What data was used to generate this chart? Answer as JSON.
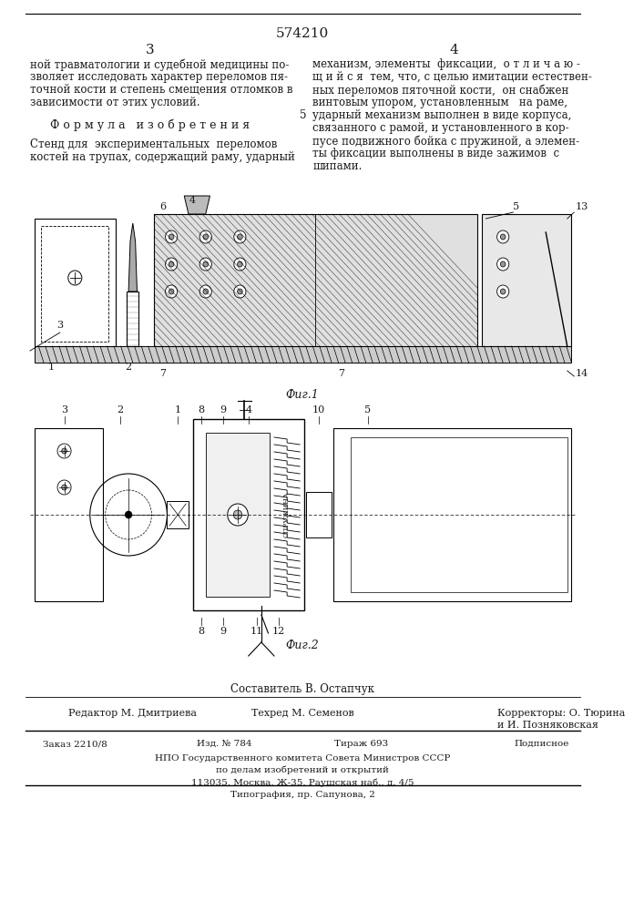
{
  "patent_number": "574210",
  "page_numbers": [
    "3",
    "4"
  ],
  "col1_text": [
    "ной травматологии и судебной медицины по-",
    "зволяет исследовать характер переломов пя-",
    "точной кости и степень смещения отломков в",
    "зависимости от этих условий."
  ],
  "formula_title": "Ф о р м у л а   и з о б р е т е н и я",
  "formula_text": [
    "Стенд для  экспериментальных  переломов",
    "костей на трупах, содержащий раму, ударный"
  ],
  "col2_text": [
    "механизм, элементы  фиксации,  о т л и ч а ю -",
    "щ и й с я  тем, что, с целью имитации естествен-",
    "ных переломов пяточной кости,  он снабжен",
    "винтовым упором, установленным   на раме,",
    "ударный механизм выполнен в виде корпуса,",
    "связанного с рамой, и установленного в кор-",
    "пусе подвижного бойка с пружиной, а элемен-",
    "ты фиксации выполнены в виде зажимов  с",
    "шипами."
  ],
  "col2_line5_prefix": "5",
  "fig1_caption": "Фиг.1",
  "fig2_caption": "Фиг.2",
  "footer_editor": "Редактор М. Дмитриева",
  "footer_techred": "Техред М. Семенов",
  "footer_correctors": "Корректоры: О. Тюрина",
  "footer_correctors2": "и И. Позняковская",
  "footer_order": "Заказ 2210/8",
  "footer_issue": "Изд. № 784",
  "footer_print": "Тираж 693",
  "footer_signed": "Подписное",
  "footer_org1": "НПО Государственного комитета Совета Министров СССР",
  "footer_org2": "по делам изобретений и открытий",
  "footer_org3": "113035, Москва, Ж-35, Раушская наб., д. 4/5",
  "footer_print_house": "Типография, пр. Сапунова, 2",
  "compiler": "Составитель В. Остапчук",
  "bg_color": "#ffffff",
  "text_color": "#1a1a1a",
  "line_color": "#000000"
}
